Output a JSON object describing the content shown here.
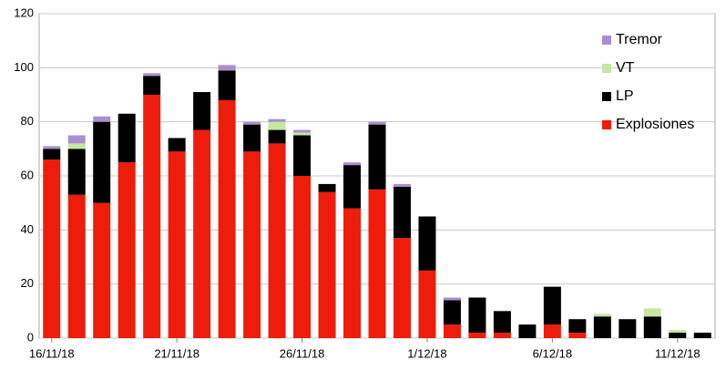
{
  "chart_data": {
    "type": "stacked-bar",
    "categories": [
      "16/11/18",
      null,
      null,
      null,
      null,
      "21/11/18",
      null,
      null,
      null,
      null,
      "26/11/18",
      null,
      null,
      null,
      null,
      "1/12/18",
      null,
      null,
      null,
      null,
      "6/12/18",
      null,
      null,
      null,
      null,
      "11/12/18",
      null
    ],
    "series": [
      {
        "name": "Explosiones",
        "color": "#ee1c0a",
        "values": [
          66,
          53,
          50,
          65,
          90,
          69,
          77,
          88,
          69,
          72,
          60,
          54,
          48,
          55,
          37,
          25,
          5,
          2,
          2,
          0,
          5,
          2,
          0,
          0,
          0,
          0,
          0
        ]
      },
      {
        "name": "LP",
        "color": "#000000",
        "values": [
          4,
          17,
          30,
          18,
          7,
          5,
          14,
          11,
          10,
          5,
          15,
          3,
          16,
          24,
          19,
          20,
          9,
          13,
          8,
          5,
          14,
          5,
          8,
          7,
          8,
          2,
          2
        ]
      },
      {
        "name": "VT",
        "color": "#c6e6a2",
        "values": [
          0,
          2,
          0,
          0,
          0,
          0,
          0,
          0,
          0,
          3,
          1,
          0,
          0,
          0,
          0,
          0,
          0,
          0,
          0,
          0,
          0,
          0,
          1,
          0,
          3,
          1,
          0
        ]
      },
      {
        "name": "Tremor",
        "color": "#a98fd2",
        "values": [
          1,
          3,
          2,
          0,
          1,
          0,
          0,
          2,
          1,
          1,
          1,
          0,
          1,
          1,
          1,
          0,
          1,
          0,
          0,
          0,
          0,
          0,
          0,
          0,
          0,
          0,
          0
        ]
      }
    ],
    "ylim": [
      0,
      120
    ],
    "yticks": [
      0,
      20,
      40,
      60,
      80,
      100,
      120
    ],
    "grid": true,
    "legend": "right"
  }
}
